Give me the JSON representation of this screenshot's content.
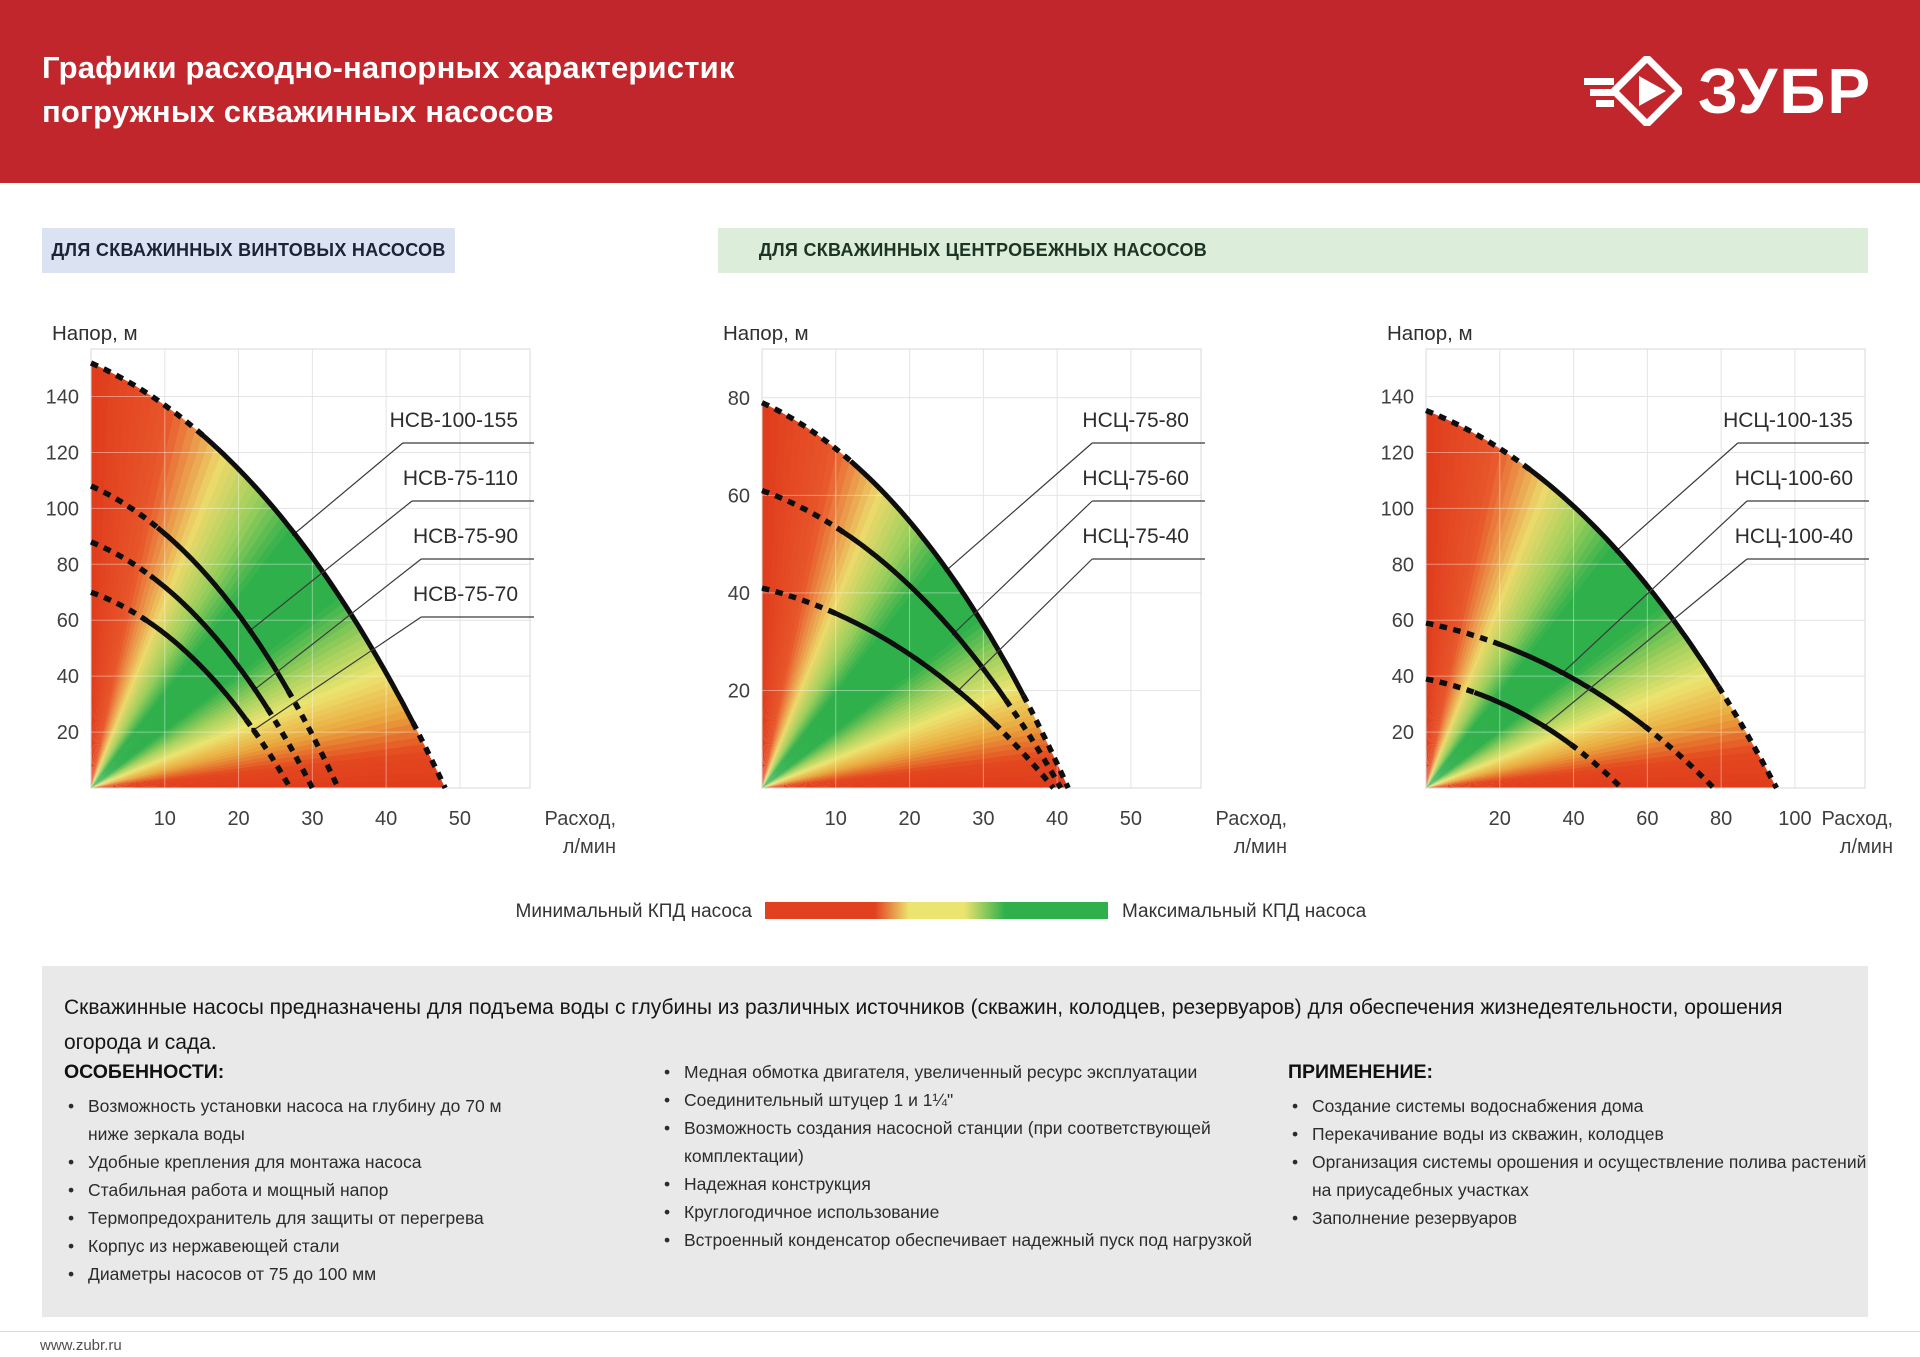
{
  "header": {
    "title_line1": "Графики расходно-напорных характеристик",
    "title_line2": "погружных скважинных насосов",
    "brand": "ЗУБР",
    "brand_red": "#c0262c"
  },
  "sections": [
    {
      "label": "ДЛЯ СКВАЖИННЫХ ВИНТОВЫХ НАСОСОВ",
      "bg": "#dbe2f2"
    },
    {
      "label": "ДЛЯ СКВАЖИННЫХ ЦЕНТРОБЕЖНЫХ НАСОСОВ",
      "bg": "#dcedda"
    }
  ],
  "chart_data": [
    {
      "type": "line",
      "group": "ДЛЯ СКВАЖИННЫХ ВИНТОВЫХ НАСОСОВ",
      "ylabel": "Напор, м",
      "xlabel_line1": "Расход,",
      "xlabel_line2": "л/мин",
      "xlim": [
        0,
        59.5
      ],
      "ylim": [
        0,
        157
      ],
      "xticks": [
        10,
        20,
        30,
        40,
        50
      ],
      "yticks": [
        20,
        40,
        60,
        80,
        100,
        120,
        140
      ],
      "grid": true,
      "series": [
        {
          "name": "НСВ-100-155",
          "max_head_m": 152,
          "max_flow_l_min": 48
        },
        {
          "name": "НСВ-75-110",
          "max_head_m": 108,
          "max_flow_l_min": 33.5
        },
        {
          "name": "НСВ-75-90",
          "max_head_m": 88,
          "max_flow_l_min": 30
        },
        {
          "name": "НСВ-75-70",
          "max_head_m": 70,
          "max_flow_l_min": 27
        }
      ]
    },
    {
      "type": "line",
      "group": "ДЛЯ СКВАЖИННЫХ ЦЕНТРОБЕЖНЫХ НАСОСОВ",
      "ylabel": "Напор, м",
      "xlabel_line1": "Расход,",
      "xlabel_line2": "л/мин",
      "xlim": [
        0,
        59.5
      ],
      "ylim": [
        0,
        90
      ],
      "xticks": [
        10,
        20,
        30,
        40,
        50
      ],
      "yticks": [
        20,
        40,
        60,
        80
      ],
      "grid": true,
      "series": [
        {
          "name": "НСЦ-75-80",
          "max_head_m": 79,
          "max_flow_l_min": 41.5
        },
        {
          "name": "НСЦ-75-60",
          "max_head_m": 61,
          "max_flow_l_min": 40.5
        },
        {
          "name": "НСЦ-75-40",
          "max_head_m": 41,
          "max_flow_l_min": 39.5
        }
      ]
    },
    {
      "type": "line",
      "group": "ДЛЯ СКВАЖИННЫХ ЦЕНТРОБЕЖНЫХ НАСОСОВ",
      "ylabel": "Напор, м",
      "xlabel_line1": "Расход,",
      "xlabel_line2": "л/мин",
      "xlim": [
        0,
        119
      ],
      "ylim": [
        0,
        157
      ],
      "xticks": [
        20,
        40,
        60,
        80,
        100
      ],
      "yticks": [
        20,
        40,
        60,
        80,
        100,
        120,
        140
      ],
      "grid": true,
      "series": [
        {
          "name": "НСЦ-100-135",
          "max_head_m": 135,
          "max_flow_l_min": 95
        },
        {
          "name": "НСЦ-100-60",
          "max_head_m": 59,
          "max_flow_l_min": 78
        },
        {
          "name": "НСЦ-100-40",
          "max_head_m": 39,
          "max_flow_l_min": 53
        }
      ]
    }
  ],
  "legend": {
    "min_label": "Минимальный КПД насоса",
    "max_label": "Максимальный КПД насоса",
    "min_color": "#e2411f",
    "mid_color": "#ece470",
    "max_color": "#2fb04b"
  },
  "info": {
    "intro": "Скважинные насосы предназначены для подъема воды с глубины из различных источников (скважин, колодцев, резервуаров) для обеспечения жизнедеятельности, орошения огорода и сада.",
    "features_title": "ОСОБЕННОСТИ:",
    "features": [
      "Возможность установки насоса на глубину до 70 м ниже зеркала воды",
      "Удобные крепления для монтажа насоса",
      "Стабильная работа и мощный напор",
      "Термопредохранитель для защиты от перегрева",
      "Корпус из нержавеющей стали",
      "Диаметры насосов от 75 до 100 мм"
    ],
    "middle_features": [
      "Медная обмотка двигателя, увеличенный ресурс эксплуатации",
      "Соединительный штуцер 1 и 1¼\"",
      "Возможность создания насосной станции (при соответствующей комплектации)",
      "Надежная конструкция",
      "Круглогодичное использование",
      "Встроенный конденсатор обеспечивает надежный пуск под нагрузкой"
    ],
    "applications_title": "ПРИМЕНЕНИЕ:",
    "applications": [
      "Создание системы водоснабжения дома",
      "Перекачивание воды из скважин, колодцев",
      "Организация системы орошения и осуществление полива растений на приусадебных участках",
      "Заполнение резервуаров"
    ]
  },
  "footer": {
    "url": "www.zubr.ru"
  }
}
